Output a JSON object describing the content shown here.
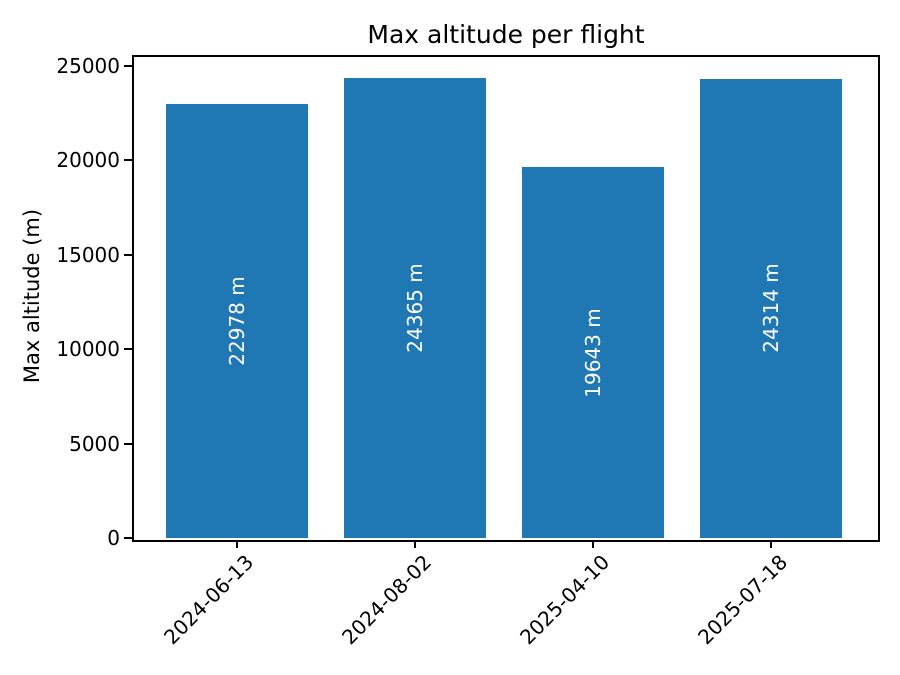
{
  "chart_data": {
    "type": "bar",
    "title": "Max altitude per flight",
    "xlabel": "",
    "ylabel": "Max altitude (m)",
    "categories": [
      "2024-06-13",
      "2024-08-02",
      "2025-04-10",
      "2025-07-18"
    ],
    "values": [
      22978,
      24365,
      19643,
      24314
    ],
    "bar_labels": [
      "22978 m",
      "24365 m",
      "19643 m",
      "24314 m"
    ],
    "yticks": [
      0,
      5000,
      10000,
      15000,
      20000,
      25000
    ],
    "ylim": [
      0,
      25583
    ],
    "xlim": [
      -0.59,
      3.59
    ],
    "bar_width_units": 0.8,
    "bar_color": "#1f77b4",
    "bar_label_color": "#ffffff",
    "x_tick_label_rotation_deg": 45,
    "grid": false,
    "legend": "none"
  }
}
